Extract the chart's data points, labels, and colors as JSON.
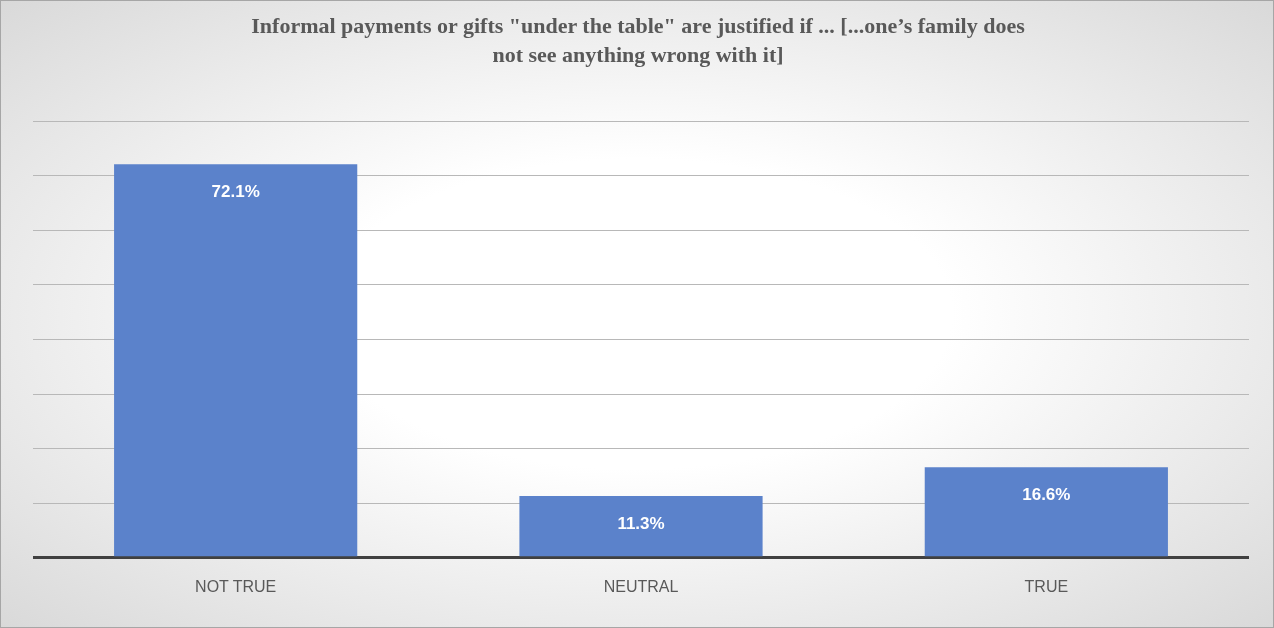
{
  "chart_data": {
    "type": "bar",
    "title": "Informal payments or gifts \"under the table\" are justified if ... [...one’s family does not see anything wrong with it]",
    "categories": [
      "NOT TRUE",
      "NEUTRAL",
      "TRUE"
    ],
    "values": [
      72.1,
      11.3,
      16.6
    ],
    "value_labels": [
      "72.1%",
      "11.3%",
      "16.6%"
    ],
    "color": "#5b82cb",
    "grid": "y",
    "tick_labels": "x"
  }
}
